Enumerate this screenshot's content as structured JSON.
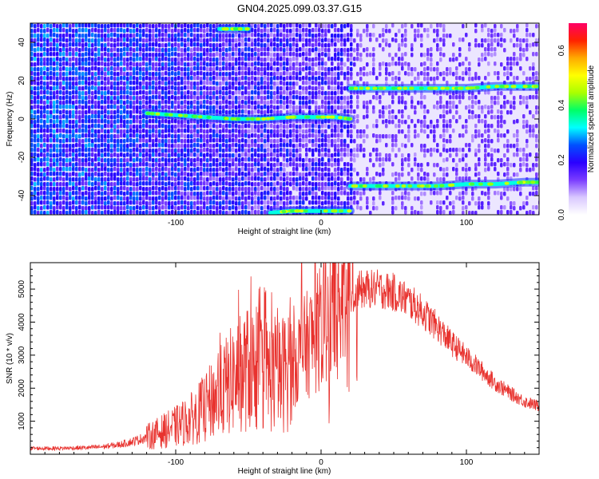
{
  "title": "GN04.2025.099.03.37.G15",
  "colors": {
    "signal_line": "#e8322e",
    "background_low": "#ffffff",
    "colormap": [
      "#ffffff",
      "#d9c8ff",
      "#7a3cff",
      "#2a00ff",
      "#0050ff",
      "#00ffff",
      "#00ff66",
      "#aaff00",
      "#ffff00",
      "#ffaa00",
      "#ff2200",
      "#ff0066"
    ]
  },
  "chart_data": [
    {
      "type": "heatmap",
      "xlabel": "Height of straight line (km)",
      "ylabel": "Frequency (Hz)",
      "xlim": [
        -200,
        150
      ],
      "ylim": [
        -50,
        50
      ],
      "xticks": [
        -100,
        0,
        100
      ],
      "yticks": [
        -40,
        -20,
        0,
        20,
        40
      ],
      "colorbar": {
        "label": "Normalized spectral amplitude",
        "range": [
          0.0,
          0.7
        ],
        "ticks": [
          0.0,
          0.2,
          0.4,
          0.6
        ]
      },
      "tracks": [
        {
          "x": [
            -120,
            -100,
            -80,
            -60,
            -40,
            -20,
            0,
            10,
            20
          ],
          "y": [
            3,
            2,
            1,
            0,
            0,
            1,
            1,
            1,
            0
          ]
        },
        {
          "x": [
            20,
            40,
            60,
            80,
            100,
            120,
            140,
            150
          ],
          "y": [
            16,
            16,
            16,
            16,
            16,
            17,
            17,
            17
          ]
        },
        {
          "x": [
            20,
            40,
            60,
            80,
            100,
            120,
            140,
            150
          ],
          "y": [
            -35,
            -35,
            -35,
            -35,
            -34,
            -34,
            -33,
            -33
          ]
        },
        {
          "x": [
            -35,
            -20,
            0,
            20
          ],
          "y": [
            -49,
            -48,
            -48,
            -48
          ]
        },
        {
          "x": [
            -70,
            -60,
            -50
          ],
          "y": [
            47,
            47,
            47
          ]
        }
      ]
    },
    {
      "type": "line",
      "xlabel": "Height of straight line (km)",
      "ylabel": "SNR (10 * v/v)",
      "xlim": [
        -200,
        150
      ],
      "ylim": [
        0,
        5800
      ],
      "xticks": [
        -100,
        0,
        100
      ],
      "yticks": [
        1000,
        2000,
        3000,
        4000,
        5000
      ],
      "series": [
        {
          "x": [
            -200,
            -180,
            -160,
            -150,
            -140,
            -130,
            -120,
            -110,
            -100,
            -90,
            -80,
            -70,
            -60,
            -50,
            -40,
            -30,
            -20,
            -10,
            0,
            5,
            10,
            15,
            20,
            25,
            30,
            40,
            50,
            60,
            70,
            80,
            90,
            100,
            110,
            120,
            130,
            140,
            150
          ],
          "y": [
            180,
            180,
            200,
            230,
            280,
            380,
            520,
            680,
            840,
            1050,
            1400,
            1850,
            2300,
            2600,
            2500,
            2300,
            2700,
            3300,
            3800,
            4300,
            4450,
            4700,
            4850,
            4950,
            5000,
            5000,
            4900,
            4650,
            4300,
            3850,
            3350,
            2950,
            2550,
            2150,
            1850,
            1600,
            1450
          ]
        }
      ]
    }
  ]
}
